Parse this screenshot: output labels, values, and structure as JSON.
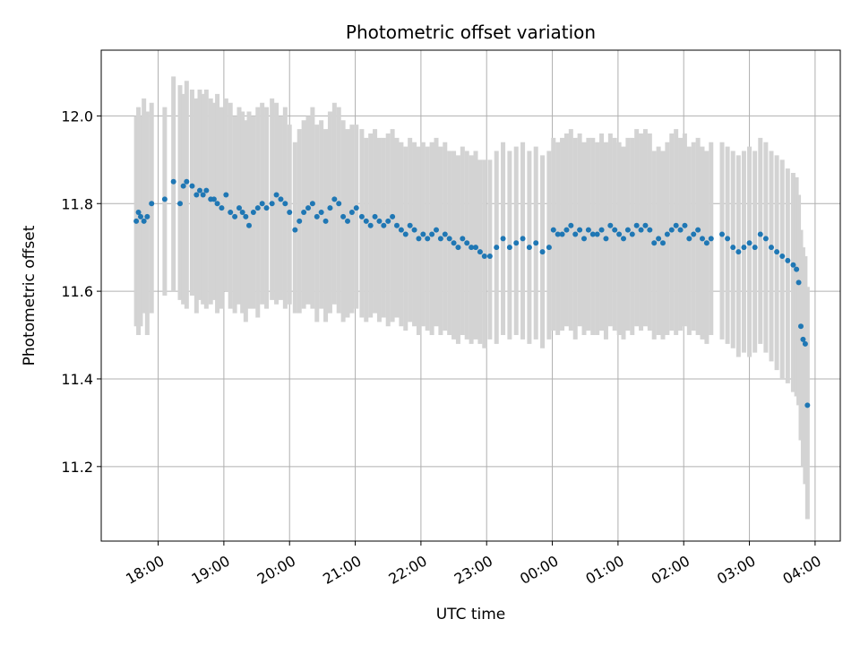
{
  "chart_data": {
    "type": "scatter",
    "title": "Photometric offset variation",
    "xlabel": "UTC time",
    "ylabel": "Photometric offset",
    "x_axis": "UTC time (HH:MM), night spanning 17:40 to 03:55",
    "xlim": [
      "17:08",
      "04:23"
    ],
    "ylim": [
      11.03,
      12.15
    ],
    "grid": true,
    "legend": "none",
    "x_ticks": [
      "18:00",
      "19:00",
      "20:00",
      "21:00",
      "22:00",
      "23:00",
      "00:00",
      "01:00",
      "02:00",
      "03:00",
      "04:00"
    ],
    "y_ticks": [
      11.2,
      11.4,
      11.6,
      11.8,
      12.0
    ],
    "y_tick_labels": [
      "11.2",
      "11.4",
      "11.6",
      "11.8",
      "12.0"
    ],
    "colors": {
      "points": "#1f77b4",
      "error_bars": "#d3d3d3",
      "grid": "#b0b0b0"
    },
    "series": [
      {
        "marker": "point with vertical error bar",
        "x": [
          "17:40",
          "17:42",
          "17:44",
          "17:47",
          "17:50",
          "17:54",
          "18:06",
          "18:14",
          "18:20",
          "18:23",
          "18:26",
          "18:31",
          "18:35",
          "18:38",
          "18:41",
          "18:44",
          "18:48",
          "18:51",
          "18:54",
          "18:58",
          "19:02",
          "19:06",
          "19:10",
          "19:14",
          "19:17",
          "19:20",
          "19:23",
          "19:27",
          "19:31",
          "19:35",
          "19:39",
          "19:44",
          "19:48",
          "19:52",
          "19:56",
          "20:00",
          "20:05",
          "20:09",
          "20:13",
          "20:17",
          "20:21",
          "20:25",
          "20:29",
          "20:33",
          "20:37",
          "20:41",
          "20:45",
          "20:49",
          "20:53",
          "20:57",
          "21:01",
          "21:06",
          "21:10",
          "21:14",
          "21:18",
          "21:22",
          "21:26",
          "21:30",
          "21:34",
          "21:38",
          "21:42",
          "21:46",
          "21:50",
          "21:54",
          "21:58",
          "22:02",
          "22:06",
          "22:10",
          "22:14",
          "22:18",
          "22:22",
          "22:26",
          "22:30",
          "22:34",
          "22:38",
          "22:42",
          "22:46",
          "22:50",
          "22:54",
          "22:58",
          "23:03",
          "23:09",
          "23:15",
          "23:21",
          "23:27",
          "23:33",
          "23:39",
          "23:45",
          "23:51",
          "23:57",
          "00:01",
          "00:05",
          "00:09",
          "00:13",
          "00:17",
          "00:21",
          "00:25",
          "00:29",
          "00:33",
          "00:37",
          "00:41",
          "00:45",
          "00:49",
          "00:53",
          "00:57",
          "01:01",
          "01:05",
          "01:09",
          "01:13",
          "01:17",
          "01:21",
          "01:25",
          "01:29",
          "01:33",
          "01:37",
          "01:41",
          "01:45",
          "01:49",
          "01:53",
          "01:57",
          "02:01",
          "02:05",
          "02:09",
          "02:13",
          "02:17",
          "02:21",
          "02:25",
          "02:35",
          "02:40",
          "02:45",
          "02:50",
          "02:55",
          "03:00",
          "03:05",
          "03:10",
          "03:15",
          "03:20",
          "03:25",
          "03:30",
          "03:35",
          "03:40",
          "03:43",
          "03:45",
          "03:47",
          "03:49",
          "03:51",
          "03:53"
        ],
        "y": [
          11.76,
          11.78,
          11.77,
          11.76,
          11.77,
          11.8,
          11.81,
          11.85,
          11.8,
          11.84,
          11.85,
          11.84,
          11.82,
          11.83,
          11.82,
          11.83,
          11.81,
          11.81,
          11.8,
          11.79,
          11.82,
          11.78,
          11.77,
          11.79,
          11.78,
          11.77,
          11.75,
          11.78,
          11.79,
          11.8,
          11.79,
          11.8,
          11.82,
          11.81,
          11.8,
          11.78,
          11.74,
          11.76,
          11.78,
          11.79,
          11.8,
          11.77,
          11.78,
          11.76,
          11.79,
          11.81,
          11.8,
          11.77,
          11.76,
          11.78,
          11.79,
          11.77,
          11.76,
          11.75,
          11.77,
          11.76,
          11.75,
          11.76,
          11.77,
          11.75,
          11.74,
          11.73,
          11.75,
          11.74,
          11.72,
          11.73,
          11.72,
          11.73,
          11.74,
          11.72,
          11.73,
          11.72,
          11.71,
          11.7,
          11.72,
          11.71,
          11.7,
          11.7,
          11.69,
          11.68,
          11.68,
          11.7,
          11.72,
          11.7,
          11.71,
          11.72,
          11.7,
          11.71,
          11.69,
          11.7,
          11.74,
          11.73,
          11.73,
          11.74,
          11.75,
          11.73,
          11.74,
          11.72,
          11.74,
          11.73,
          11.73,
          11.74,
          11.72,
          11.75,
          11.74,
          11.73,
          11.72,
          11.74,
          11.73,
          11.75,
          11.74,
          11.75,
          11.74,
          11.71,
          11.72,
          11.71,
          11.73,
          11.74,
          11.75,
          11.74,
          11.75,
          11.72,
          11.73,
          11.74,
          11.72,
          11.71,
          11.72,
          11.73,
          11.72,
          11.7,
          11.69,
          11.7,
          11.71,
          11.7,
          11.73,
          11.72,
          11.7,
          11.69,
          11.68,
          11.67,
          11.66,
          11.65,
          11.62,
          11.52,
          11.49,
          11.48,
          11.34
        ],
        "err_low": [
          11.52,
          11.5,
          11.52,
          11.55,
          11.5,
          11.55,
          11.59,
          11.6,
          11.58,
          11.57,
          11.56,
          11.59,
          11.55,
          11.58,
          11.57,
          11.56,
          11.57,
          11.58,
          11.55,
          11.56,
          11.6,
          11.56,
          11.55,
          11.57,
          11.55,
          11.53,
          11.56,
          11.56,
          11.54,
          11.57,
          11.56,
          11.58,
          11.57,
          11.58,
          11.56,
          11.57,
          11.55,
          11.55,
          11.56,
          11.57,
          11.56,
          11.53,
          11.56,
          11.53,
          11.55,
          11.57,
          11.55,
          11.53,
          11.54,
          11.55,
          11.56,
          11.54,
          11.53,
          11.54,
          11.55,
          11.53,
          11.54,
          11.52,
          11.53,
          11.54,
          11.52,
          11.51,
          11.53,
          11.52,
          11.5,
          11.52,
          11.51,
          11.5,
          11.52,
          11.5,
          11.51,
          11.5,
          11.49,
          11.48,
          11.5,
          11.49,
          11.48,
          11.49,
          11.48,
          11.47,
          11.49,
          11.48,
          11.5,
          11.49,
          11.5,
          11.49,
          11.48,
          11.49,
          11.47,
          11.49,
          11.51,
          11.5,
          11.51,
          11.52,
          11.51,
          11.49,
          11.52,
          11.5,
          11.51,
          11.5,
          11.5,
          11.51,
          11.49,
          11.52,
          11.51,
          11.5,
          11.49,
          11.51,
          11.5,
          11.52,
          11.51,
          11.52,
          11.51,
          11.49,
          11.5,
          11.49,
          11.5,
          11.51,
          11.5,
          11.51,
          11.52,
          11.5,
          11.51,
          11.5,
          11.49,
          11.48,
          11.5,
          11.49,
          11.48,
          11.47,
          11.45,
          11.46,
          11.45,
          11.46,
          11.48,
          11.46,
          11.44,
          11.42,
          11.4,
          11.39,
          11.37,
          11.36,
          11.34,
          11.26,
          11.2,
          11.16,
          11.08
        ],
        "err_high": [
          12.0,
          12.02,
          12.0,
          12.04,
          12.01,
          12.03,
          12.02,
          12.09,
          12.07,
          12.05,
          12.08,
          12.06,
          12.04,
          12.06,
          12.05,
          12.06,
          12.04,
          12.03,
          12.05,
          12.02,
          12.04,
          12.03,
          12.0,
          12.02,
          12.01,
          11.99,
          12.01,
          12.0,
          12.02,
          12.03,
          12.02,
          12.04,
          12.03,
          12.0,
          12.02,
          11.98,
          11.94,
          11.97,
          11.99,
          12.0,
          12.02,
          11.98,
          11.99,
          11.97,
          12.01,
          12.03,
          12.02,
          11.99,
          11.97,
          11.98,
          11.98,
          11.97,
          11.95,
          11.96,
          11.97,
          11.95,
          11.95,
          11.96,
          11.97,
          11.95,
          11.94,
          11.93,
          11.95,
          11.94,
          11.93,
          11.94,
          11.93,
          11.94,
          11.95,
          11.93,
          11.94,
          11.92,
          11.92,
          11.91,
          11.93,
          11.92,
          11.91,
          11.92,
          11.9,
          11.9,
          11.9,
          11.92,
          11.94,
          11.92,
          11.93,
          11.94,
          11.92,
          11.93,
          11.91,
          11.92,
          11.95,
          11.94,
          11.95,
          11.96,
          11.97,
          11.95,
          11.96,
          11.94,
          11.95,
          11.95,
          11.94,
          11.96,
          11.94,
          11.96,
          11.95,
          11.94,
          11.93,
          11.95,
          11.95,
          11.97,
          11.96,
          11.97,
          11.96,
          11.92,
          11.93,
          11.92,
          11.94,
          11.96,
          11.97,
          11.95,
          11.96,
          11.93,
          11.94,
          11.95,
          11.93,
          11.92,
          11.94,
          11.94,
          11.93,
          11.92,
          11.91,
          11.92,
          11.93,
          11.92,
          11.95,
          11.94,
          11.92,
          11.91,
          11.9,
          11.88,
          11.87,
          11.86,
          11.82,
          11.74,
          11.7,
          11.68,
          11.61
        ]
      }
    ]
  }
}
